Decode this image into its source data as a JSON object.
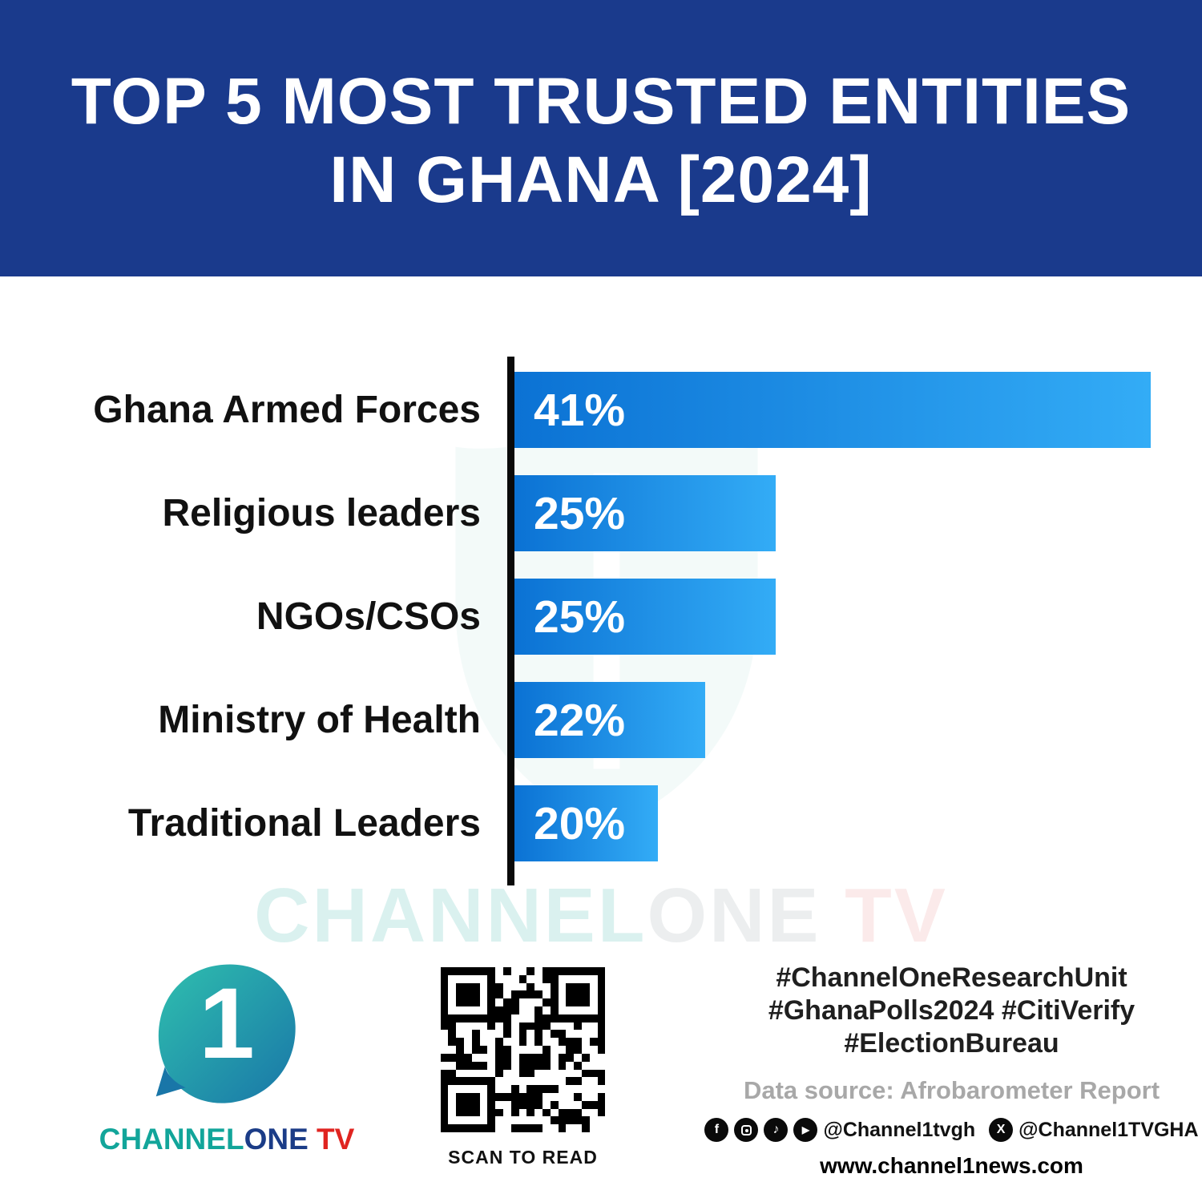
{
  "header": {
    "title_line1": "TOP 5 MOST TRUSTED ENTITIES",
    "title_line2": "IN GHANA [2024]"
  },
  "chart_data": {
    "type": "bar",
    "orientation": "horizontal",
    "title": "TOP 5 MOST TRUSTED ENTITIES IN GHANA [2024]",
    "categories": [
      "Ghana Armed Forces",
      "Religious leaders",
      "NGOs/CSOs",
      "Ministry of Health",
      "Traditional Leaders"
    ],
    "values": [
      41,
      25,
      25,
      22,
      20
    ],
    "value_labels": [
      "41%",
      "25%",
      "25%",
      "22%",
      "20%"
    ],
    "xlabel": "",
    "ylabel": "",
    "xlim": [
      0,
      41
    ],
    "grid": false,
    "legend": false,
    "bar_color_start": "#0b72d4",
    "bar_color_end": "#33acf6",
    "display_widths_pct": [
      100,
      41,
      41,
      30,
      22.5
    ]
  },
  "watermark": {
    "part1": "CHANNEL",
    "part2": "ONE",
    "part3": " TV"
  },
  "footer": {
    "logo": {
      "digit": "1",
      "text_channel": "CHANNEL",
      "text_one": "ONE",
      "text_tv": " TV"
    },
    "qr_caption": "SCAN TO READ",
    "hashtags_line1": "#ChannelOneResearchUnit",
    "hashtags_line2": "#GhanaPolls2024 #CitiVerify",
    "hashtags_line3": "#ElectionBureau",
    "data_source": "Data source: Afrobarometer Report",
    "social_handle1": "@Channel1tvgh",
    "social_handle2": "@Channel1TVGHA",
    "x_label": "X",
    "facebook_label": "f",
    "tiktok_label": "♪",
    "youtube_label": "▶",
    "website": "www.channel1news.com"
  },
  "colors": {
    "header_bg": "#1a3a8c",
    "accent_teal": "#12a59a",
    "accent_red": "#e02420",
    "axis_black": "#0a0a0a"
  }
}
